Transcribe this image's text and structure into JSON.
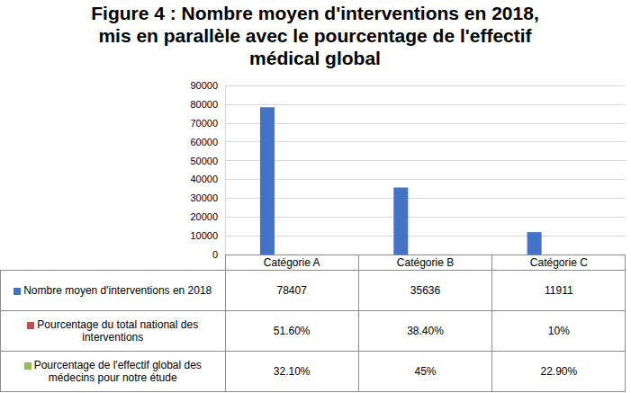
{
  "chart_data": {
    "type": "bar",
    "title": "Figure 4 : Nombre moyen d'interventions en 2018, mis en parallèle avec le pourcentage de l'effectif médical global",
    "categories": [
      "Catégorie A",
      "Catégorie B",
      "Catégorie C"
    ],
    "series": [
      {
        "name": "Nombre moyen d'interventions en 2018",
        "color": "#4472c4",
        "values": [
          78407,
          35636,
          11911
        ]
      },
      {
        "name": "Pourcentage du total national des interventions",
        "color": "#c0504d",
        "values": [
          51.6,
          38.4,
          10
        ],
        "value_labels": [
          "51.60%",
          "38.40%",
          "10%"
        ]
      },
      {
        "name": "Pourcentage de l'effectif global des médecins pour notre étude",
        "color": "#9bbb59",
        "values": [
          32.1,
          45,
          22.9
        ],
        "value_labels": [
          "32.10%",
          "45%",
          "22.90%"
        ]
      }
    ],
    "ylim": [
      0,
      90000
    ],
    "yticks": [
      0,
      10000,
      20000,
      30000,
      40000,
      50000,
      60000,
      70000,
      80000,
      90000
    ],
    "grid": true,
    "tick_labels": "y"
  }
}
